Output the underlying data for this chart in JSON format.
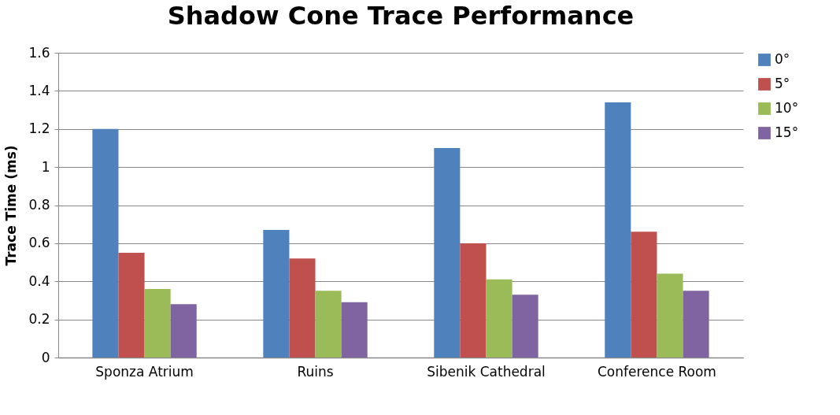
{
  "chart_data": {
    "type": "bar",
    "title": "Shadow Cone Trace Performance",
    "ylabel": "Trace Time (ms)",
    "categories": [
      "Sponza Atrium",
      "Ruins",
      "Sibenik Cathedral",
      "Conference Room"
    ],
    "series": [
      {
        "name": "0°",
        "color": "#4f81bd",
        "values": [
          1.2,
          0.67,
          1.1,
          1.34
        ]
      },
      {
        "name": "5°",
        "color": "#c0504d",
        "values": [
          0.55,
          0.52,
          0.6,
          0.66
        ]
      },
      {
        "name": "10°",
        "color": "#9bbb59",
        "values": [
          0.36,
          0.35,
          0.41,
          0.44
        ]
      },
      {
        "name": "15°",
        "color": "#8064a2",
        "values": [
          0.28,
          0.29,
          0.33,
          0.35
        ]
      }
    ],
    "ylim": [
      0,
      1.6
    ],
    "yticks": [
      0,
      0.2,
      0.4,
      0.6,
      0.8,
      1,
      1.2,
      1.4,
      1.6
    ],
    "grid": "y",
    "legend": "right"
  }
}
